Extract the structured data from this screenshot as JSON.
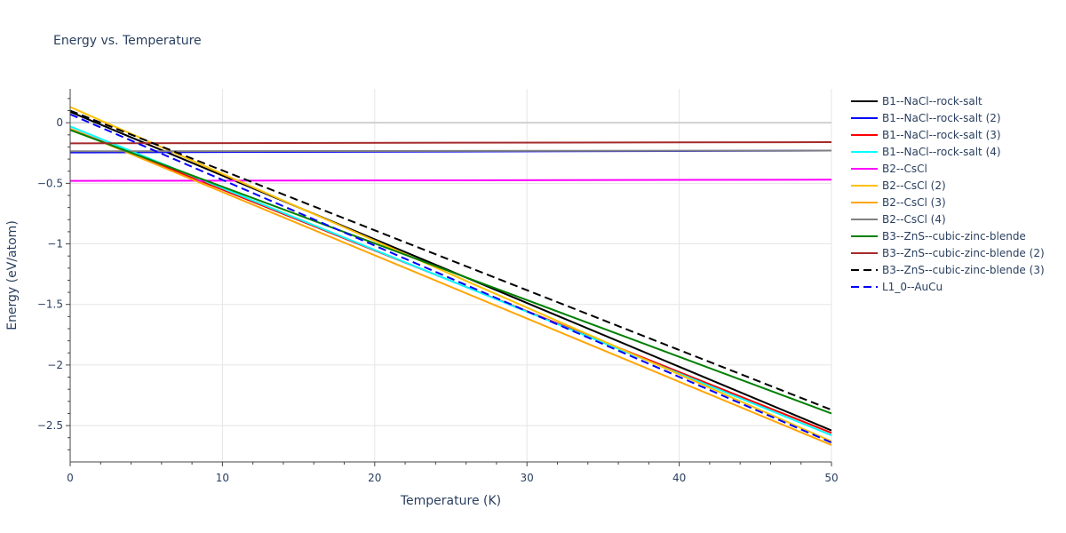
{
  "chart_data": {
    "type": "line",
    "title": "Energy vs. Temperature",
    "xlabel": "Temperature (K)",
    "ylabel": "Energy (eV/atom)",
    "xlim": [
      0,
      50
    ],
    "ylim": [
      -2.8,
      0.28
    ],
    "x_ticks": [
      0,
      10,
      20,
      30,
      40,
      50
    ],
    "x_tick_labels": [
      "0",
      "10",
      "20",
      "30",
      "40",
      "50"
    ],
    "y_ticks": [
      0,
      -0.5,
      -1,
      -1.5,
      -2,
      -2.5
    ],
    "y_tick_labels": [
      "0",
      "−0.5",
      "−1",
      "−1.5",
      "−2",
      "−2.5"
    ],
    "grid": true,
    "legend_position": "right",
    "x": [
      0,
      50
    ],
    "series": [
      {
        "name": "B1--NaCl--rock-salt",
        "values": [
          0.09,
          -2.54
        ],
        "color": "#000000",
        "dash": "solid"
      },
      {
        "name": "B1--NaCl--rock-salt (2)",
        "values": [
          -0.245,
          -0.23
        ],
        "color": "#0000ff",
        "dash": "solid"
      },
      {
        "name": "B1--NaCl--rock-salt (3)",
        "values": [
          -0.05,
          -2.56
        ],
        "color": "#ff0000",
        "dash": "solid"
      },
      {
        "name": "B1--NaCl--rock-salt (4)",
        "values": [
          -0.03,
          -2.58
        ],
        "color": "#00ffff",
        "dash": "solid"
      },
      {
        "name": "B2--CsCl",
        "values": [
          -0.48,
          -0.47
        ],
        "color": "#ff00ff",
        "dash": "solid"
      },
      {
        "name": "B2--CsCl (2)",
        "values": [
          0.13,
          -2.63
        ],
        "color": "#ffc000",
        "dash": "solid"
      },
      {
        "name": "B2--CsCl (3)",
        "values": [
          -0.05,
          -2.66
        ],
        "color": "#ffa500",
        "dash": "solid"
      },
      {
        "name": "B2--CsCl (4)",
        "values": [
          -0.235,
          -0.23
        ],
        "color": "#808080",
        "dash": "solid"
      },
      {
        "name": "B3--ZnS--cubic-zinc-blende",
        "values": [
          -0.06,
          -2.4
        ],
        "color": "#008000",
        "dash": "solid"
      },
      {
        "name": "B3--ZnS--cubic-zinc-blende (2)",
        "values": [
          -0.17,
          -0.16
        ],
        "color": "#a52a2a",
        "dash": "solid"
      },
      {
        "name": "B3--ZnS--cubic-zinc-blende (3)",
        "values": [
          0.1,
          -2.37
        ],
        "color": "#000000",
        "dash": "dash"
      },
      {
        "name": "L1_0--AuCu",
        "values": [
          0.07,
          -2.64
        ],
        "color": "#0000ff",
        "dash": "dash"
      }
    ]
  }
}
